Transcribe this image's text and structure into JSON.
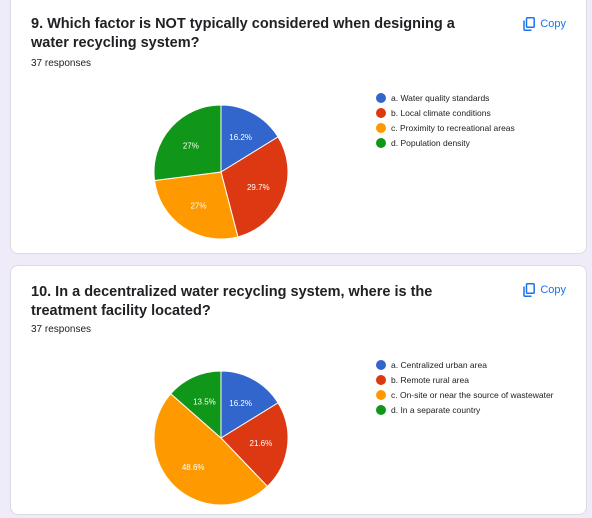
{
  "questions": [
    {
      "title": "9. Which factor is NOT typically considered when designing a water recycling system?",
      "responses": "37 responses",
      "copy_label": "Copy"
    },
    {
      "title": "10.  In a decentralized water recycling system, where is the treatment facility located?",
      "responses": "37 responses",
      "copy_label": "Copy"
    }
  ],
  "colors": {
    "blue": "#3366cc",
    "red": "#dc3912",
    "orange": "#ff9900",
    "green": "#109618"
  },
  "chart_data": [
    {
      "type": "pie",
      "categories": [
        "a. Water quality standards",
        "b. Local climate conditions",
        "c. Proximity to recreational areas",
        "d. Population density"
      ],
      "values": [
        16.2,
        29.7,
        27,
        27
      ],
      "value_labels": [
        "16.2%",
        "29.7%",
        "27%",
        "27%"
      ],
      "colors": [
        "#3366cc",
        "#dc3912",
        "#ff9900",
        "#109618"
      ],
      "legend_position": "right"
    },
    {
      "type": "pie",
      "categories": [
        "a. Centralized urban area",
        "b. Remote rural area",
        "c. On-site or near the source of wastewater",
        "d. In a separate country"
      ],
      "values": [
        16.2,
        21.6,
        48.6,
        13.5
      ],
      "value_labels": [
        "16.2%",
        "21.6%",
        "48.6%",
        "13.5%"
      ],
      "colors": [
        "#3366cc",
        "#dc3912",
        "#ff9900",
        "#109618"
      ],
      "legend_position": "right"
    }
  ]
}
